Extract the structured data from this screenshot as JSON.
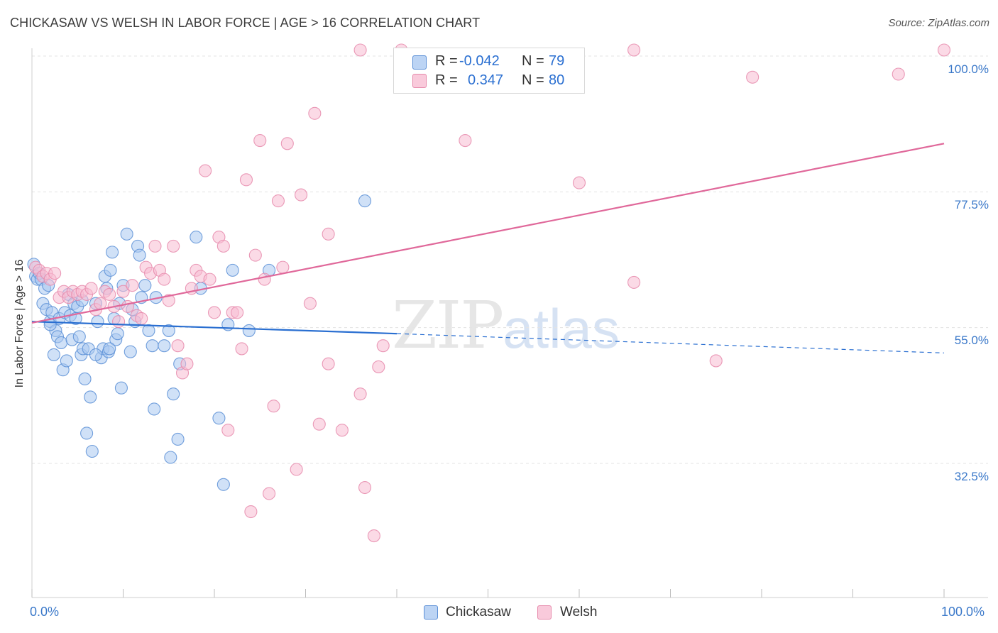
{
  "title": "CHICKASAW VS WELSH IN LABOR FORCE | AGE > 16 CORRELATION CHART",
  "source": "Source: ZipAtlas.com",
  "colors": {
    "chickasaw_fill": "#a9c8f0",
    "chickasaw_stroke": "#5b8fd6",
    "chickasaw_line": "#2a6fd1",
    "welsh_fill": "#f7bcd1",
    "welsh_stroke": "#e68aab",
    "welsh_line": "#e0689a",
    "tick_text": "#3a78c9",
    "grid": "#e3e3e3"
  },
  "legend": {
    "chickasaw": {
      "r_label": "R =",
      "r_value": "-0.042",
      "n_label": "N =",
      "n_value": "79"
    },
    "welsh": {
      "r_label": "R =",
      "r_value": "0.347",
      "n_label": "N =",
      "n_value": "80"
    }
  },
  "bottom_legend": {
    "chickasaw": "Chickasaw",
    "welsh": "Welsh"
  },
  "watermark": {
    "zip": "ZIP",
    "atlas": "atlas"
  },
  "chart_data": {
    "type": "scatter",
    "title": "CHICKASAW VS WELSH IN LABOR FORCE | AGE > 16 CORRELATION CHART",
    "xlabel": "",
    "ylabel": "In Labor Force | Age > 16",
    "xlim": [
      0,
      100
    ],
    "ylim": [
      10,
      104
    ],
    "x_tick_labels": [
      "0.0%",
      "100.0%"
    ],
    "y_ticks": [
      32.5,
      55.0,
      77.5,
      100.0
    ],
    "y_tick_labels": [
      "32.5%",
      "55.0%",
      "77.5%",
      "100.0%"
    ],
    "grid": true,
    "series": [
      {
        "name": "Chickasaw",
        "regression": {
          "x0": 0,
          "y0": 56.0,
          "x1": 40,
          "y1": 54.0,
          "dash_to_x": 100,
          "dash_to_y": 50.8
        },
        "points": [
          [
            0.2,
            65.5
          ],
          [
            0.4,
            63.5
          ],
          [
            0.6,
            63
          ],
          [
            0.8,
            64
          ],
          [
            1.0,
            63
          ],
          [
            1.2,
            59
          ],
          [
            1.4,
            61.5
          ],
          [
            1.6,
            58
          ],
          [
            1.8,
            62
          ],
          [
            2.0,
            56
          ],
          [
            2.2,
            57.5
          ],
          [
            2.4,
            50.5
          ],
          [
            2.6,
            54.5
          ],
          [
            2.8,
            53.5
          ],
          [
            3.0,
            56.5
          ],
          [
            3.2,
            52.5
          ],
          [
            3.4,
            48
          ],
          [
            3.6,
            57.5
          ],
          [
            3.8,
            49.5
          ],
          [
            4.0,
            60.5
          ],
          [
            4.2,
            57
          ],
          [
            4.4,
            53
          ],
          [
            4.6,
            59
          ],
          [
            4.8,
            56.5
          ],
          [
            5.0,
            58.5
          ],
          [
            5.2,
            53.5
          ],
          [
            5.4,
            50.5
          ],
          [
            5.6,
            51.5
          ],
          [
            5.8,
            46.5
          ],
          [
            6.0,
            37.5
          ],
          [
            6.2,
            51.5
          ],
          [
            6.4,
            43.5
          ],
          [
            6.6,
            34.5
          ],
          [
            7.0,
            59
          ],
          [
            7.2,
            56
          ],
          [
            7.6,
            50
          ],
          [
            7.8,
            51.5
          ],
          [
            8.0,
            63.5
          ],
          [
            8.2,
            61.5
          ],
          [
            8.4,
            51
          ],
          [
            8.6,
            64.5
          ],
          [
            8.8,
            67.5
          ],
          [
            9.0,
            56.5
          ],
          [
            9.2,
            53
          ],
          [
            9.4,
            54
          ],
          [
            9.6,
            59
          ],
          [
            9.8,
            45
          ],
          [
            10.0,
            62
          ],
          [
            10.4,
            70.5
          ],
          [
            10.8,
            51
          ],
          [
            11.0,
            58
          ],
          [
            11.3,
            56
          ],
          [
            11.6,
            68.5
          ],
          [
            11.8,
            67
          ],
          [
            12.0,
            60
          ],
          [
            12.4,
            62
          ],
          [
            12.8,
            54.5
          ],
          [
            13.2,
            52
          ],
          [
            13.4,
            41.5
          ],
          [
            13.6,
            60
          ],
          [
            14.5,
            52
          ],
          [
            15.0,
            54.5
          ],
          [
            15.5,
            44
          ],
          [
            16.0,
            36.5
          ],
          [
            16.2,
            49
          ],
          [
            15.2,
            33.5
          ],
          [
            18.0,
            70
          ],
          [
            18.5,
            61.5
          ],
          [
            20.5,
            40
          ],
          [
            21.0,
            29
          ],
          [
            21.5,
            55.5
          ],
          [
            22.0,
            64.5
          ],
          [
            23.8,
            54.5
          ],
          [
            26.0,
            64.5
          ],
          [
            36.5,
            76
          ],
          [
            2.0,
            55.5
          ],
          [
            5.5,
            59.5
          ],
          [
            7.0,
            50.5
          ],
          [
            8.5,
            51.5
          ]
        ]
      },
      {
        "name": "Welsh",
        "regression": {
          "x0": 0,
          "y0": 55.8,
          "x1": 100,
          "y1": 85.5
        },
        "points": [
          [
            0.4,
            65
          ],
          [
            0.8,
            64.5
          ],
          [
            1.2,
            63.5
          ],
          [
            1.6,
            64
          ],
          [
            2.0,
            63
          ],
          [
            2.5,
            64
          ],
          [
            3.0,
            60
          ],
          [
            3.5,
            61
          ],
          [
            4.0,
            60
          ],
          [
            4.5,
            61
          ],
          [
            5.0,
            60.5
          ],
          [
            5.5,
            61
          ],
          [
            6.0,
            60.5
          ],
          [
            6.5,
            61.5
          ],
          [
            7.0,
            58
          ],
          [
            7.5,
            59
          ],
          [
            8.0,
            61
          ],
          [
            8.5,
            60.5
          ],
          [
            9.0,
            58.5
          ],
          [
            9.5,
            56
          ],
          [
            10.0,
            61
          ],
          [
            10.5,
            58.5
          ],
          [
            11.0,
            62
          ],
          [
            11.5,
            57
          ],
          [
            12.0,
            56.5
          ],
          [
            12.5,
            65
          ],
          [
            13.0,
            64
          ],
          [
            13.5,
            68.5
          ],
          [
            14.0,
            64.5
          ],
          [
            14.5,
            63
          ],
          [
            15.0,
            59.5
          ],
          [
            15.5,
            68.5
          ],
          [
            16.0,
            52
          ],
          [
            16.5,
            47.5
          ],
          [
            17.0,
            49
          ],
          [
            17.5,
            61.5
          ],
          [
            18.0,
            64.5
          ],
          [
            18.5,
            63.5
          ],
          [
            19.0,
            81
          ],
          [
            19.5,
            63
          ],
          [
            20.0,
            57.5
          ],
          [
            20.5,
            70
          ],
          [
            21.0,
            68.5
          ],
          [
            21.5,
            38
          ],
          [
            22.0,
            57.5
          ],
          [
            22.5,
            57.5
          ],
          [
            23.0,
            51.5
          ],
          [
            23.5,
            79.5
          ],
          [
            24.0,
            24.5
          ],
          [
            24.5,
            67
          ],
          [
            25.0,
            86
          ],
          [
            25.5,
            63
          ],
          [
            26.0,
            27.5
          ],
          [
            26.5,
            42
          ],
          [
            27.0,
            76
          ],
          [
            27.5,
            65
          ],
          [
            28.0,
            85.5
          ],
          [
            29.0,
            31.5
          ],
          [
            29.5,
            77
          ],
          [
            30.5,
            59
          ],
          [
            31.0,
            90.5
          ],
          [
            31.5,
            39
          ],
          [
            32.5,
            49
          ],
          [
            32.5,
            70.5
          ],
          [
            34.0,
            38
          ],
          [
            36.0,
            44
          ],
          [
            36.5,
            28.5
          ],
          [
            37.5,
            20.5
          ],
          [
            38.0,
            48.5
          ],
          [
            38.5,
            52
          ],
          [
            36.0,
            101
          ],
          [
            40.5,
            101
          ],
          [
            47.5,
            86
          ],
          [
            60.0,
            79
          ],
          [
            66.0,
            101
          ],
          [
            66.0,
            62.5
          ],
          [
            75.0,
            49.5
          ],
          [
            79.0,
            96.5
          ],
          [
            95.0,
            97
          ],
          [
            100.0,
            101
          ]
        ]
      }
    ]
  }
}
